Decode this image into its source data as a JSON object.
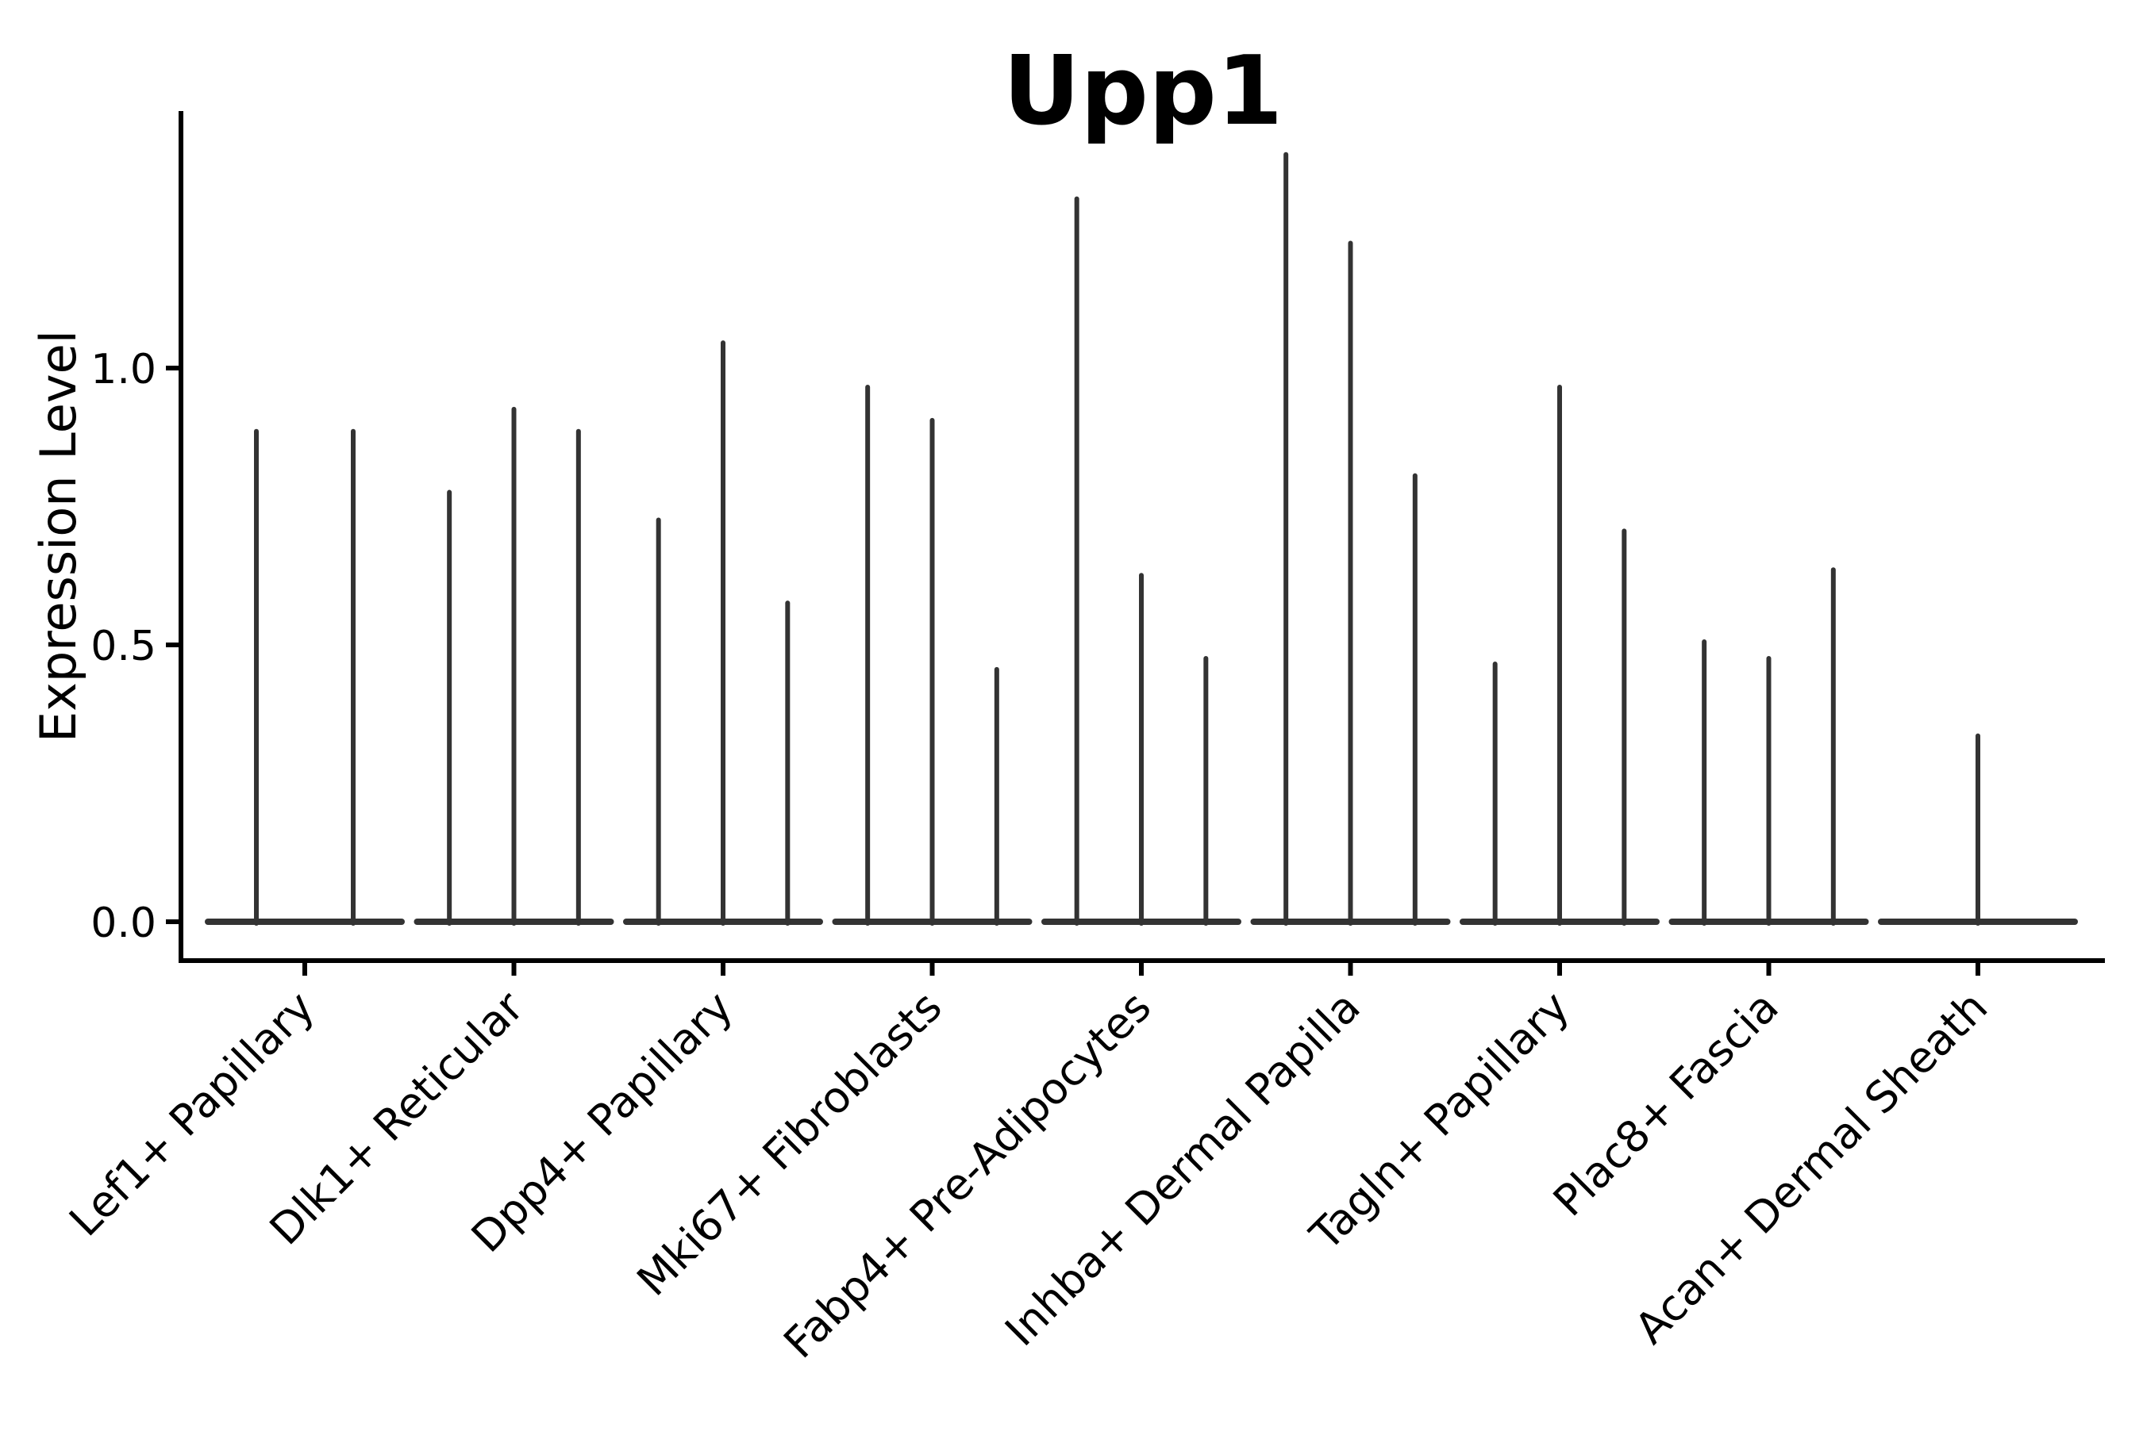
{
  "chart_data": {
    "type": "violin",
    "title": "Upp1",
    "ylabel": "Expression Level",
    "xlabel": "",
    "legend": null,
    "grid": false,
    "background_color": "#ffffff",
    "axis_color": "#000000",
    "violin_color": "#333333",
    "yticks": [
      "0.0",
      "0.5",
      "1.0"
    ],
    "ytick_values": [
      0.0,
      0.5,
      1.0
    ],
    "ylim": [
      -0.07,
      1.46
    ],
    "xtick_rotation_deg": 45,
    "categories": [
      "Lef1+ Papillary",
      "Dlk1+ Reticular",
      "Dpp4+ Papillary",
      "Mki67+ Fibroblasts",
      "Fabp4+ Pre-Adipocytes",
      "Inhba+ Dermal Papilla",
      "Tagln+ Papillary",
      "Plac8+ Fascia",
      "Acan+ Dermal Sheath"
    ],
    "groups": [
      {
        "label": "Lef1+ Papillary",
        "violin_max_values": [
          0.89,
          0.89
        ]
      },
      {
        "label": "Dlk1+ Reticular",
        "violin_max_values": [
          0.78,
          0.93,
          0.89
        ]
      },
      {
        "label": "Dpp4+ Papillary",
        "violin_max_values": [
          0.73,
          1.05,
          0.58
        ]
      },
      {
        "label": "Mki67+ Fibroblasts",
        "violin_max_values": [
          0.97,
          0.91,
          0.46
        ]
      },
      {
        "label": "Fabp4+ Pre-Adipocytes",
        "violin_max_values": [
          1.31,
          0.63,
          0.48
        ]
      },
      {
        "label": "Inhba+ Dermal Papilla",
        "violin_max_values": [
          1.39,
          1.23,
          0.81
        ]
      },
      {
        "label": "Tagln+ Papillary",
        "violin_max_values": [
          0.47,
          0.97,
          0.71
        ]
      },
      {
        "label": "Plac8+ Fascia",
        "violin_max_values": [
          0.51,
          0.48,
          0.64
        ]
      },
      {
        "label": "Acan+ Dermal Sheath",
        "violin_max_values": [
          0.34
        ]
      }
    ],
    "note": "Each violin collapses to a flat base at 0 with a thin spike up to its max expression value"
  }
}
